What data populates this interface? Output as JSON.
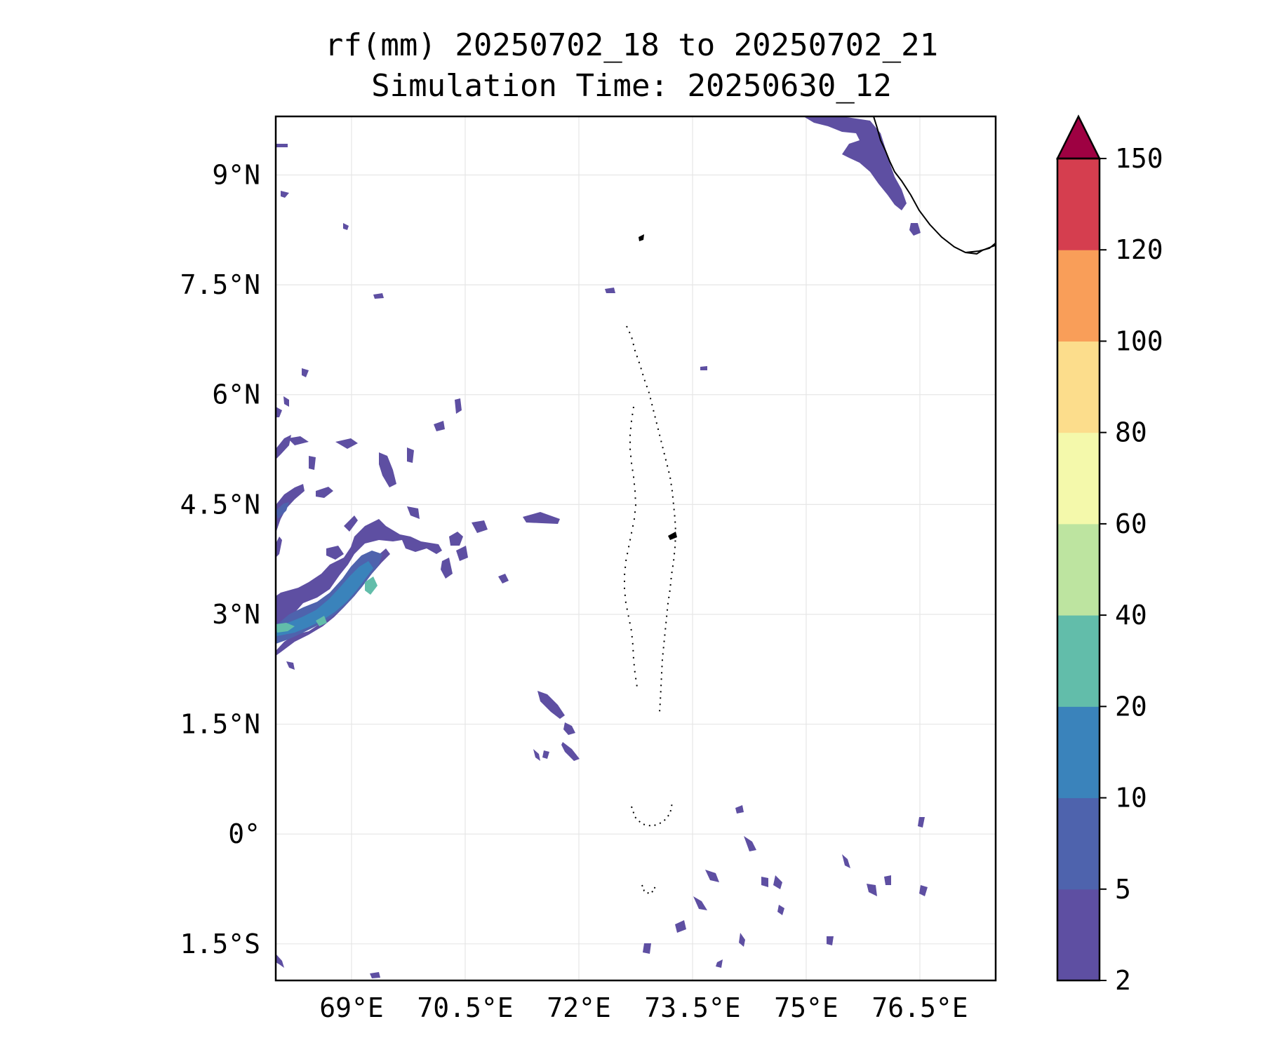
{
  "title": {
    "line1": "rf(mm) 20250702_18 to 20250702_21",
    "line2": "Simulation Time: 20250630_12"
  },
  "map": {
    "lon_range": [
      68.0,
      77.5
    ],
    "lat_range": [
      -2.0,
      9.8
    ],
    "x_ticks": [
      {
        "value": 69.0,
        "label": "69°E"
      },
      {
        "value": 70.5,
        "label": "70.5°E"
      },
      {
        "value": 72.0,
        "label": "72°E"
      },
      {
        "value": 73.5,
        "label": "73.5°E"
      },
      {
        "value": 75.0,
        "label": "75°E"
      },
      {
        "value": 76.5,
        "label": "76.5°E"
      }
    ],
    "y_ticks": [
      {
        "value": 9.0,
        "label": "9°N"
      },
      {
        "value": 7.5,
        "label": "7.5°N"
      },
      {
        "value": 6.0,
        "label": "6°N"
      },
      {
        "value": 4.5,
        "label": "4.5°N"
      },
      {
        "value": 3.0,
        "label": "3°N"
      },
      {
        "value": 1.5,
        "label": "1.5°N"
      },
      {
        "value": 0.0,
        "label": "0°"
      },
      {
        "value": -1.5,
        "label": "1.5°S"
      }
    ],
    "grid": true,
    "coastline_color": "#000000"
  },
  "colorbar": {
    "levels": [
      "2",
      "5",
      "10",
      "20",
      "40",
      "60",
      "80",
      "100",
      "120",
      "150"
    ],
    "colors": [
      "#5e4fa2",
      "#4e63ad",
      "#3a83bb",
      "#62bdaa",
      "#bde4a0",
      "#f4f9ab",
      "#fcdd8c",
      "#f99e59",
      "#d53e4f"
    ],
    "extend_color": "#9e0142",
    "extend": "max"
  },
  "chart_data": {
    "type": "heatmap",
    "variable": "rf(mm)",
    "period": "20250702_18 to 20250702_21",
    "simulation_time": "20250630_12",
    "levels_mm": [
      2,
      5,
      10,
      20,
      40,
      60,
      80,
      100,
      120,
      150
    ],
    "rain_areas": [
      {
        "lon": [
          68.0,
          68.3,
          68.6,
          68.9,
          69.2,
          69.5,
          69.8,
          70.0,
          70.3,
          70.5
        ],
        "lat": [
          2.6,
          2.7,
          2.75,
          2.9,
          3.1,
          3.4,
          3.8,
          4.0,
          3.9,
          3.95
        ],
        "max_class_mm": "20-40"
      },
      {
        "lon": [
          76.7,
          76.4,
          76.2,
          76.0,
          75.9
        ],
        "lat": [
          8.4,
          8.7,
          9.0,
          9.3,
          9.8
        ],
        "max_class_mm": "2-5"
      }
    ]
  }
}
